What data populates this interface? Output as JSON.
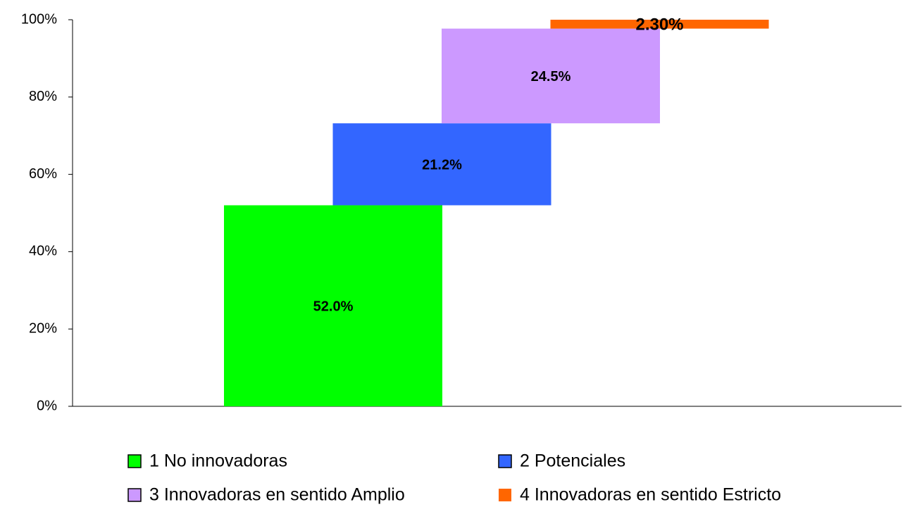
{
  "chart_data": {
    "type": "waterfall",
    "series": [
      {
        "name": "1 No innovadoras",
        "color": "#00ff00",
        "values": [
          52.0
        ],
        "value_labels": [
          "52.0%"
        ]
      },
      {
        "name": "2 Potenciales",
        "color": "#3366ff",
        "values": [
          21.2
        ],
        "value_labels": [
          "21.2%"
        ]
      },
      {
        "name": "3 Innovadoras en sentido Amplio",
        "color": "#cc99ff",
        "values": [
          24.5
        ],
        "value_labels": [
          "24.5%"
        ]
      },
      {
        "name": "4 Innovadoras en sentido Estricto",
        "color": "#ff6600",
        "values": [
          2.3
        ],
        "value_labels": [
          "2.30%"
        ]
      }
    ],
    "ylim": [
      0,
      100
    ],
    "yticks": [
      {
        "value": 0,
        "label": "0%"
      },
      {
        "value": 20,
        "label": "20%"
      },
      {
        "value": 40,
        "label": "40%"
      },
      {
        "value": 60,
        "label": "60%"
      },
      {
        "value": 80,
        "label": "80%"
      },
      {
        "value": 100,
        "label": "100%"
      }
    ],
    "legend": "bottom"
  }
}
